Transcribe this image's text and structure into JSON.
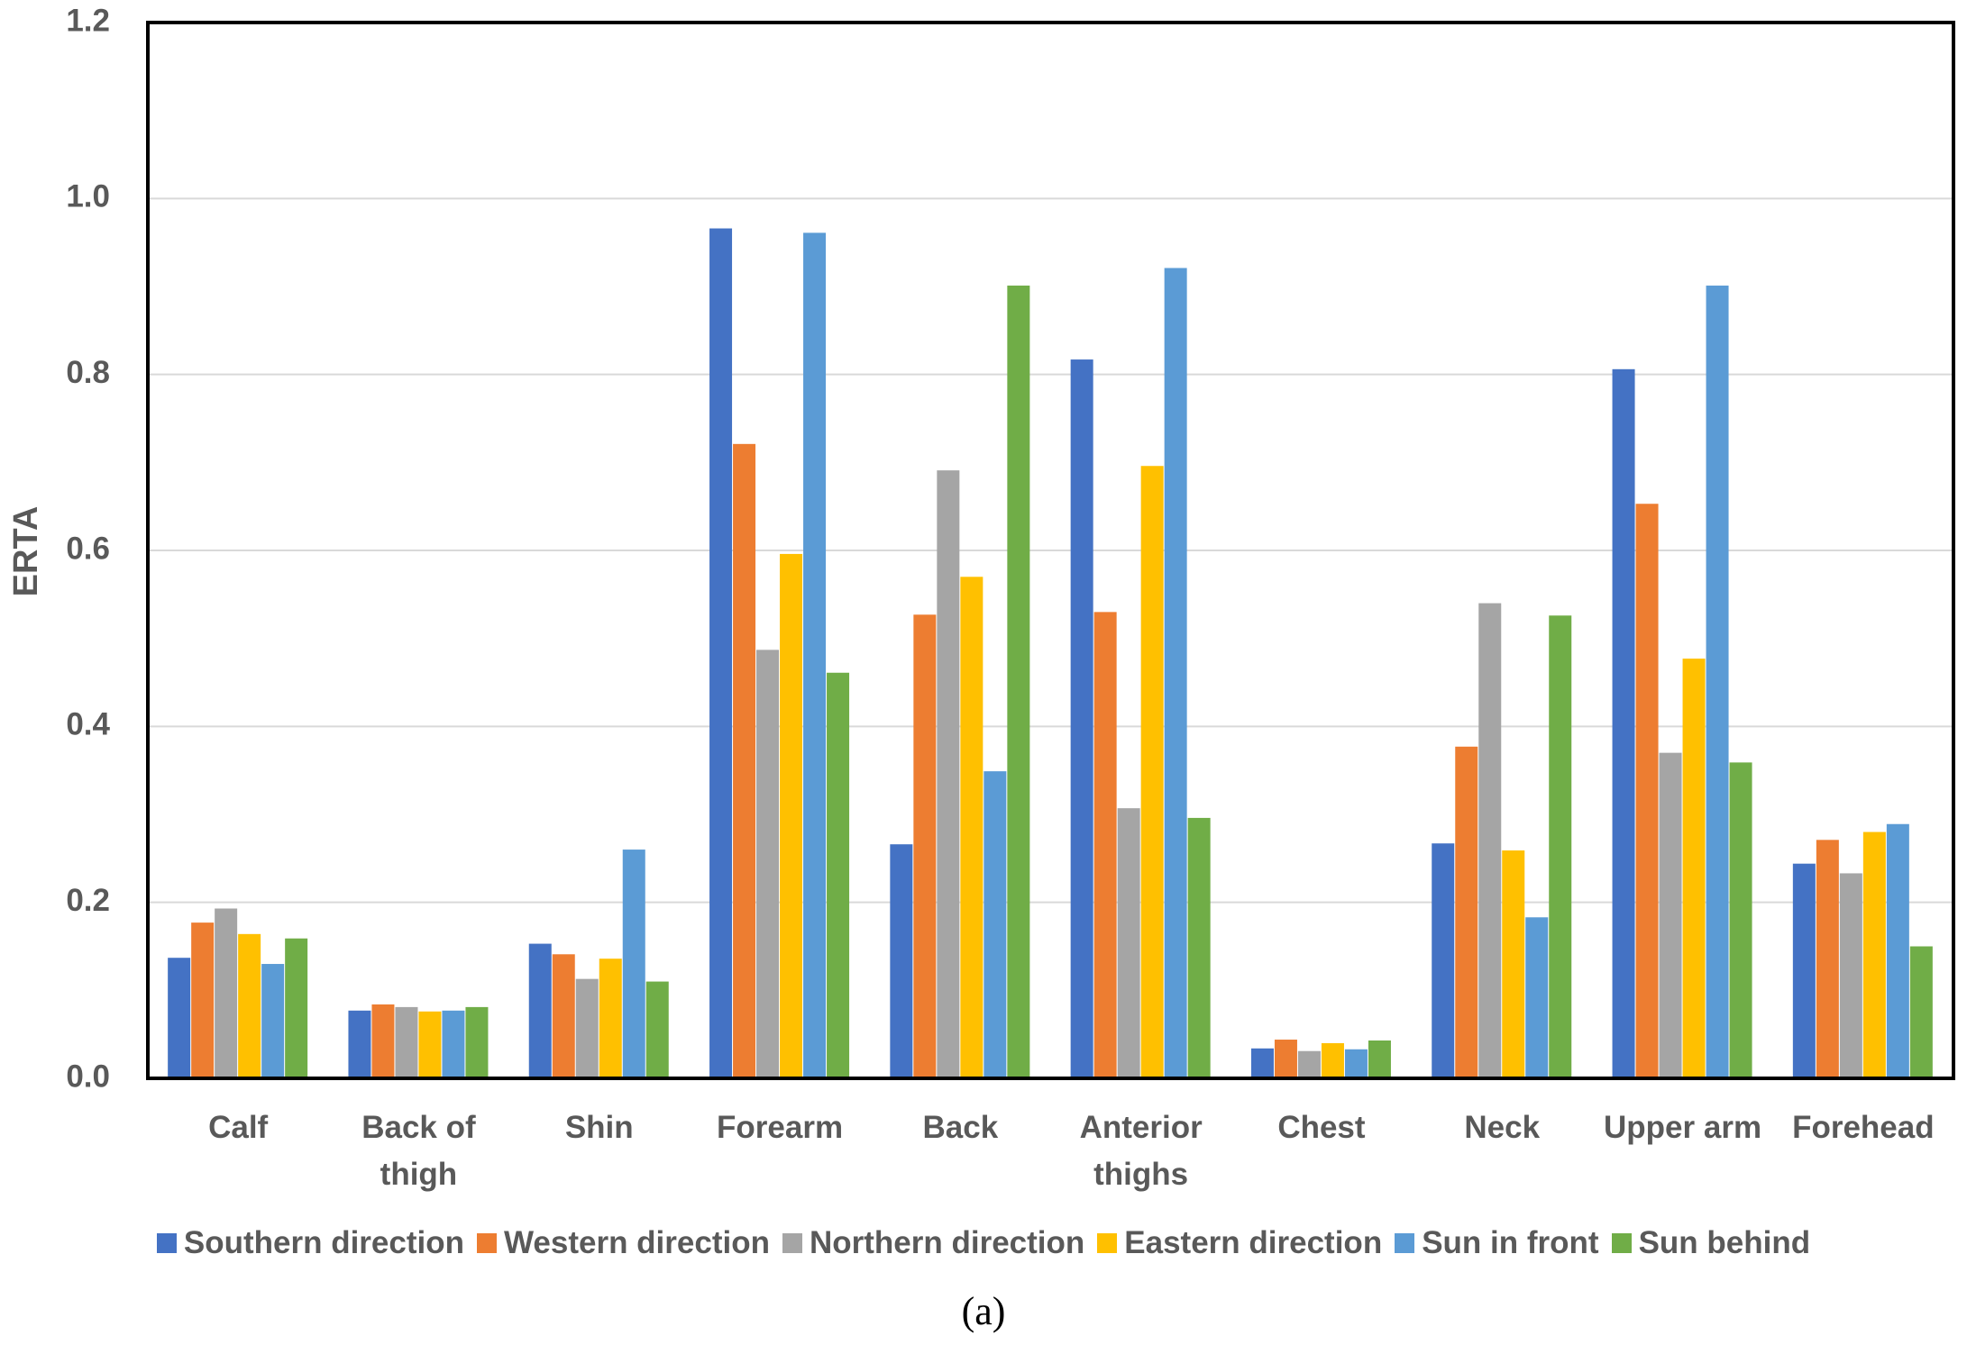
{
  "chart_data": {
    "type": "bar",
    "y_label": "ERTA",
    "caption": "(a)",
    "categories": [
      "Calf",
      "Back of thigh",
      "Shin",
      "Forearm",
      "Back",
      "Anterior thighs",
      "Chest",
      "Neck",
      "Upper arm",
      "Forehead"
    ],
    "series": [
      {
        "name": "Southern direction",
        "color": "#4472c4",
        "values": [
          0.137,
          0.077,
          0.153,
          0.966,
          0.266,
          0.817,
          0.034,
          0.267,
          0.806,
          0.244
        ]
      },
      {
        "name": "Western direction",
        "color": "#ed7d31",
        "values": [
          0.177,
          0.084,
          0.141,
          0.721,
          0.527,
          0.53,
          0.044,
          0.377,
          0.653,
          0.271
        ]
      },
      {
        "name": "Northern direction",
        "color": "#a5a5a5",
        "values": [
          0.193,
          0.081,
          0.113,
          0.487,
          0.691,
          0.307,
          0.031,
          0.54,
          0.37,
          0.233
        ]
      },
      {
        "name": "Eastern direction",
        "color": "#ffc000",
        "values": [
          0.164,
          0.076,
          0.136,
          0.596,
          0.57,
          0.696,
          0.04,
          0.259,
          0.477,
          0.28
        ]
      },
      {
        "name": "Sun in front",
        "color": "#5b9bd5",
        "values": [
          0.13,
          0.077,
          0.26,
          0.961,
          0.349,
          0.921,
          0.033,
          0.183,
          0.901,
          0.289
        ]
      },
      {
        "name": "Sun behind",
        "color": "#70ad47",
        "values": [
          0.159,
          0.081,
          0.11,
          0.461,
          0.901,
          0.296,
          0.043,
          0.526,
          0.359,
          0.15
        ]
      }
    ],
    "ylim": [
      0,
      1.2
    ],
    "yticks": [
      {
        "value": 0,
        "label": "0.0"
      },
      0.2,
      0.4,
      0.6,
      0.8,
      {
        "value": 1,
        "label": "1.0"
      },
      1.2
    ],
    "grid": true
  }
}
